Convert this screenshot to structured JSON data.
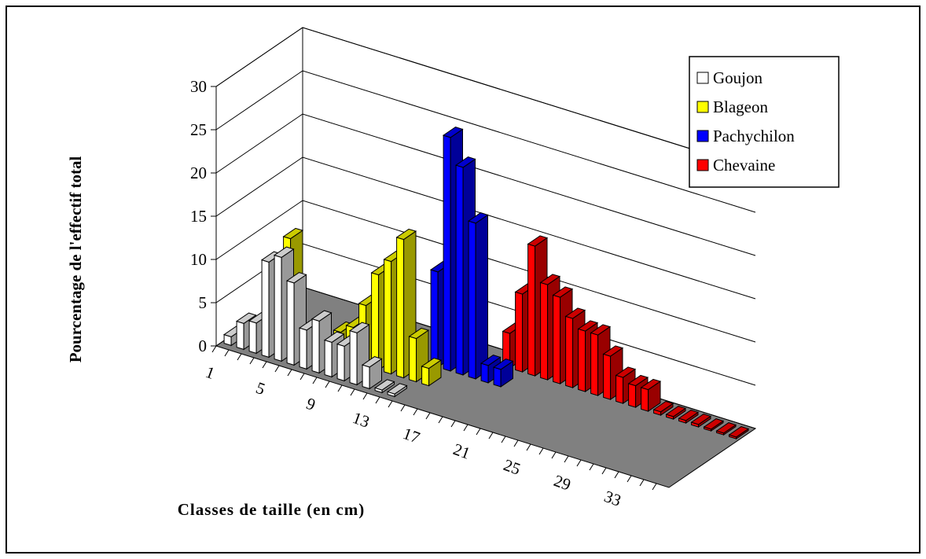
{
  "chart_data": {
    "type": "bar3d",
    "y_label": "Pourcentage de l'effectif total",
    "x_label": "Classes de taille (en cm)",
    "categories": [
      1,
      null,
      null,
      null,
      5,
      null,
      null,
      null,
      9,
      null,
      null,
      null,
      13,
      null,
      null,
      null,
      17,
      null,
      null,
      null,
      21,
      null,
      null,
      null,
      25,
      null,
      null,
      null,
      29,
      null,
      null,
      null,
      33,
      null,
      null,
      null
    ],
    "series": [
      {
        "name": "Goujon",
        "color": "#ffffff",
        "values": [
          1,
          3,
          3.5,
          11,
          12,
          9.5,
          4.5,
          6,
          4,
          4,
          6,
          2.5,
          0.3,
          0.3,
          null,
          null,
          null,
          null,
          null,
          null,
          null,
          null,
          null,
          null,
          null,
          null,
          null,
          null,
          null,
          null,
          null,
          null,
          null,
          null,
          null,
          null
        ]
      },
      {
        "name": "Blageon",
        "color": "#ffff00",
        "values": [
          null,
          null,
          1,
          12,
          1,
          null,
          1,
          3,
          4,
          7,
          11,
          13,
          16,
          5,
          2,
          null,
          null,
          null,
          null,
          null,
          null,
          null,
          null,
          null,
          null,
          null,
          null,
          null,
          null,
          null,
          null,
          null,
          null,
          null,
          null,
          null
        ]
      },
      {
        "name": "Pachychilon",
        "color": "#0000ff",
        "values": [
          null,
          null,
          null,
          null,
          null,
          null,
          null,
          null,
          null,
          null,
          null,
          null,
          null,
          11,
          27,
          24,
          18,
          2,
          2,
          null,
          null,
          null,
          null,
          null,
          null,
          null,
          null,
          null,
          null,
          null,
          null,
          null,
          null,
          null,
          null,
          null
        ]
      },
      {
        "name": "Chevaine",
        "color": "#ff0000",
        "values": [
          null,
          null,
          null,
          null,
          null,
          null,
          null,
          null,
          null,
          null,
          null,
          null,
          null,
          null,
          null,
          null,
          null,
          4,
          9,
          15,
          11,
          10,
          8,
          7,
          7,
          5,
          3,
          2.5,
          2.5,
          0.4,
          0.3,
          0.3,
          0.3,
          0.2,
          0.2,
          0.2
        ]
      }
    ],
    "ylim": [
      0,
      30
    ],
    "yticks": [
      0,
      5,
      10,
      15,
      20,
      25,
      30
    ],
    "grid": true,
    "floor_color": "#808080",
    "legend": "upper right"
  }
}
